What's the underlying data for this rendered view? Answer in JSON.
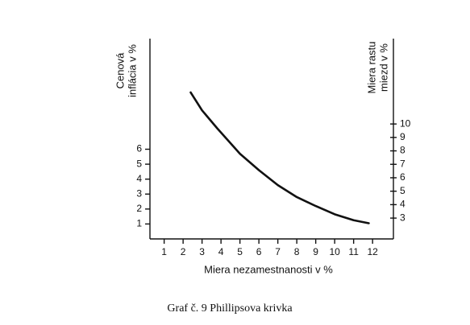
{
  "chart_data": {
    "type": "line",
    "xlabel": "Miera nezamestnanosti v %",
    "ylabel": [
      "Cenová",
      "inflácia v %"
    ],
    "y2label": [
      "Miera rastu",
      "miezd v %"
    ],
    "caption": "Graf č. 9 Phillipsova krivka",
    "x": [
      2.4,
      3,
      3.8,
      5,
      6,
      7,
      8,
      9,
      10,
      11,
      11.8
    ],
    "series": [
      {
        "color": "#111111",
        "values": [
          9.8,
          8.6,
          7.4,
          5.7,
          4.6,
          3.6,
          2.8,
          2.2,
          1.65,
          1.25,
          1.05
        ]
      }
    ],
    "xlim": [
      0.25,
      13.1
    ],
    "xticks": [
      1,
      2,
      3,
      4,
      5,
      6,
      7,
      8,
      9,
      10,
      11,
      12
    ],
    "ylim": [
      0,
      13.4
    ],
    "yticks": [
      1,
      2,
      3,
      4,
      5,
      6
    ],
    "y2lim": [
      1.45,
      16.35
    ],
    "y2ticks": [
      3,
      4,
      5,
      6,
      7,
      8,
      9,
      10
    ],
    "grid": false
  }
}
